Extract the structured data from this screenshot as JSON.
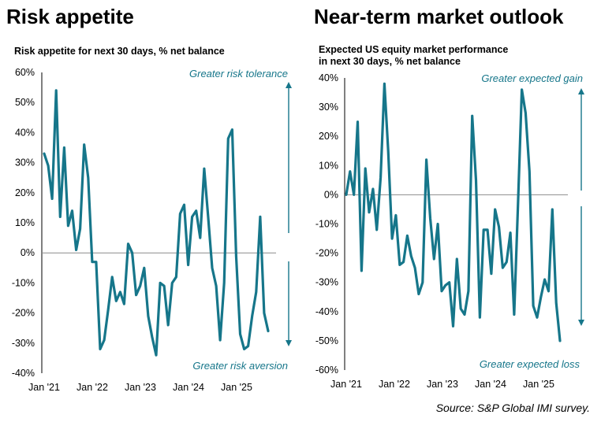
{
  "page": {
    "source": "Source: S&P Global IMI survey."
  },
  "colors": {
    "line": "#16768a",
    "arrow": "#16768a",
    "zero": "#8c8c8c",
    "text": "#000000"
  },
  "chart_data": [
    {
      "type": "line",
      "title": "Risk appetite",
      "subtitle": "Risk appetite for next 30 days, % net balance",
      "ylim": [
        -40,
        60
      ],
      "yticks": [
        60,
        50,
        40,
        30,
        20,
        10,
        0,
        -10,
        -20,
        -30,
        -40
      ],
      "ytick_labels": [
        "60%",
        "50%",
        "40%",
        "30%",
        "20%",
        "10%",
        "0%",
        "-10%",
        "-20%",
        "-30%",
        "-40%"
      ],
      "xticks": [
        "Jan '21",
        "Jan '22",
        "Jan '23",
        "Jan '24",
        "Jan '25"
      ],
      "x_start": "2021-01",
      "grid": false,
      "annotations": [
        "Greater risk tolerance",
        "Greater risk aversion"
      ],
      "series": [
        {
          "values": [
            33,
            29,
            18,
            54,
            12,
            35,
            9,
            14,
            1,
            8,
            36,
            25,
            -3,
            -3,
            -32,
            -29,
            -19,
            -8,
            -16,
            -13,
            -17,
            3,
            0,
            -14,
            -11,
            -5,
            -21,
            -28,
            -34,
            -10,
            -11,
            -24,
            -10,
            -8,
            13,
            16,
            -4,
            12,
            14,
            5,
            28,
            12,
            -5,
            -11,
            -29,
            -10,
            38,
            41,
            -1,
            -27,
            -32,
            -31,
            -21,
            -13,
            12,
            -20,
            -26
          ]
        }
      ]
    },
    {
      "type": "line",
      "title": "Near-term market outlook",
      "subtitle": "Expected US equity market performance\nin next 30 days, % net balance",
      "ylim": [
        -60,
        40
      ],
      "yticks": [
        40,
        30,
        20,
        10,
        0,
        -10,
        -20,
        -30,
        -40,
        -50,
        -60
      ],
      "ytick_labels": [
        "40%",
        "30%",
        "20%",
        "10%",
        "0%",
        "-10%",
        "-20%",
        "-30%",
        "-40%",
        "-50%",
        "-60%"
      ],
      "xticks": [
        "Jan '21",
        "Jan '22",
        "Jan '23",
        "Jan '24",
        "Jan '25"
      ],
      "x_start": "2021-01",
      "grid": false,
      "annotations": [
        "Greater expected gain",
        "Greater  expected loss"
      ],
      "series": [
        {
          "values": [
            0,
            8,
            0,
            25,
            -26,
            9,
            -6,
            2,
            -12,
            6,
            38,
            15,
            -15,
            -7,
            -24,
            -23,
            -14,
            -21,
            -25,
            -34,
            -30,
            12,
            -8,
            -22,
            -10,
            -33,
            -31,
            -30,
            -45,
            -22,
            -39,
            -41,
            -33,
            27,
            5,
            -42,
            -12,
            -12,
            -27,
            -5,
            -11,
            -25,
            -23,
            -13,
            -41,
            -3,
            36,
            28,
            8,
            -38,
            -42,
            -35,
            -29,
            -33,
            -5,
            -37,
            -50
          ]
        }
      ]
    }
  ]
}
